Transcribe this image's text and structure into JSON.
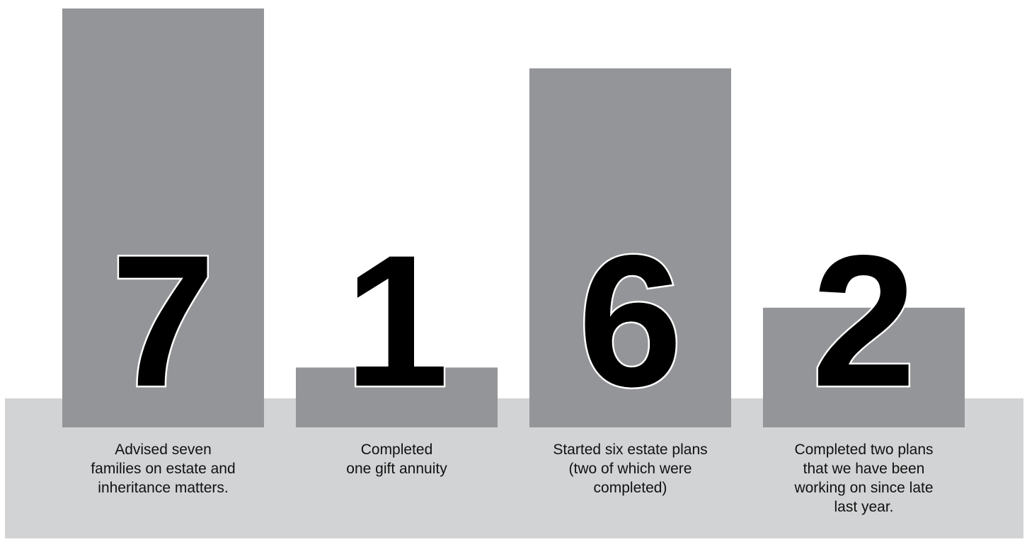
{
  "colors": {
    "bar": "#939598",
    "base": "#d1d3d4",
    "number_fill": "#000000",
    "number_outline": "#ffffff",
    "caption_text": "#111111"
  },
  "chart_data": {
    "type": "bar",
    "categories": [
      "Advised seven families on estate and inheritance matters.",
      "Completed one gift annuity",
      "Started six estate plans (two of which were completed)",
      "Completed two plans that we have been working on since late last year."
    ],
    "values": [
      7,
      1,
      6,
      2
    ],
    "labels": [
      "7",
      "1",
      "6",
      "2"
    ],
    "captions": [
      [
        "Advised seven",
        "families on estate and",
        "inheritance matters."
      ],
      [
        "Completed",
        "one gift annuity"
      ],
      [
        "Started six estate plans",
        "(two of which were",
        "completed)"
      ],
      [
        "Completed two plans",
        "that we have been",
        "working on since late",
        "last year."
      ]
    ],
    "ylim": [
      0,
      7
    ],
    "grid": false,
    "legend": "none"
  }
}
